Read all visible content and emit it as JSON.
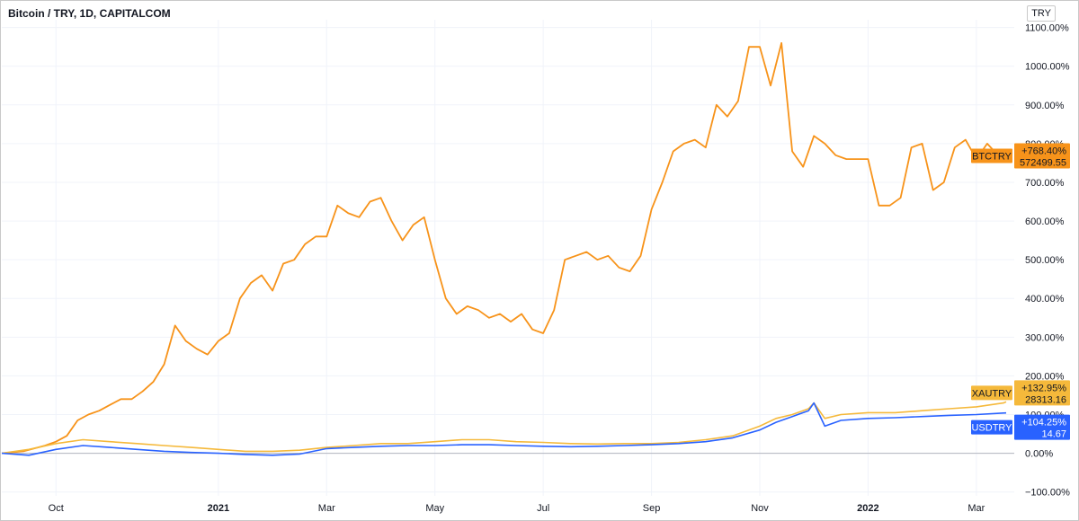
{
  "title": "Bitcoin / TRY, 1D, CAPITALCOM",
  "currency_button": "TRY",
  "colors": {
    "btctry": "#f7931a",
    "xautry": "#f5b93b",
    "usdtry": "#2962ff",
    "grid": "#f0f3fa",
    "zero_line": "#b2b5be"
  },
  "chart_data": {
    "type": "line",
    "ylabel": "",
    "y_unit": "%",
    "ylim": [
      -110,
      1120
    ],
    "y_ticks": [
      "1100.00%",
      "1000.00%",
      "900.00%",
      "800.00%",
      "700.00%",
      "600.00%",
      "500.00%",
      "400.00%",
      "300.00%",
      "200.00%",
      "100.00%",
      "0.00%",
      "−100.00%"
    ],
    "x_ticks": [
      {
        "label": "Oct",
        "bold": false
      },
      {
        "label": "2021",
        "bold": true
      },
      {
        "label": "Mar",
        "bold": false
      },
      {
        "label": "May",
        "bold": false
      },
      {
        "label": "Jul",
        "bold": false
      },
      {
        "label": "Sep",
        "bold": false
      },
      {
        "label": "Nov",
        "bold": false
      },
      {
        "label": "2022",
        "bold": true
      },
      {
        "label": "Mar",
        "bold": false
      }
    ],
    "x_tick_months": [
      1,
      4,
      6,
      8,
      10,
      12,
      14,
      16,
      18
    ],
    "grid": true,
    "series": [
      {
        "name": "BTCTRY",
        "change": "+768.40%",
        "last_value": "572499.55",
        "end_y": 768.4,
        "x": [
          0,
          0.4,
          0.8,
          1.0,
          1.2,
          1.4,
          1.6,
          1.8,
          2.0,
          2.2,
          2.4,
          2.6,
          2.8,
          3.0,
          3.2,
          3.4,
          3.6,
          3.8,
          4.0,
          4.2,
          4.4,
          4.6,
          4.8,
          5.0,
          5.2,
          5.4,
          5.6,
          5.8,
          6.0,
          6.2,
          6.4,
          6.6,
          6.8,
          7.0,
          7.2,
          7.4,
          7.6,
          7.8,
          8.0,
          8.2,
          8.4,
          8.6,
          8.8,
          9.0,
          9.2,
          9.4,
          9.6,
          9.8,
          10.0,
          10.2,
          10.4,
          10.6,
          10.8,
          11.0,
          11.2,
          11.4,
          11.6,
          11.8,
          12.0,
          12.2,
          12.4,
          12.6,
          12.8,
          13.0,
          13.2,
          13.4,
          13.6,
          13.8,
          14.0,
          14.2,
          14.4,
          14.6,
          14.8,
          15.0,
          15.2,
          15.4,
          15.6,
          15.8,
          16.0,
          16.2,
          16.4,
          16.6,
          16.8,
          17.0,
          17.2,
          17.4,
          17.6,
          17.8,
          18.0,
          18.2,
          18.4,
          18.55
        ],
        "y": [
          0,
          5,
          20,
          30,
          45,
          85,
          100,
          110,
          125,
          140,
          140,
          160,
          185,
          230,
          330,
          290,
          270,
          255,
          290,
          310,
          400,
          440,
          460,
          420,
          490,
          500,
          540,
          560,
          560,
          640,
          620,
          610,
          650,
          660,
          600,
          550,
          590,
          610,
          500,
          400,
          360,
          380,
          370,
          350,
          360,
          340,
          360,
          320,
          310,
          370,
          500,
          510,
          520,
          500,
          510,
          480,
          470,
          510,
          630,
          700,
          780,
          800,
          810,
          790,
          900,
          870,
          910,
          1050,
          1050,
          950,
          1060,
          780,
          740,
          820,
          800,
          770,
          760,
          760,
          760,
          640,
          640,
          660,
          790,
          800,
          680,
          700,
          790,
          810,
          760,
          800,
          770,
          768.4
        ]
      },
      {
        "name": "XAUTRY",
        "change": "+132.95%",
        "last_value": "28313.16",
        "end_y": 132.95,
        "x": [
          0,
          0.5,
          1.0,
          1.5,
          2.0,
          2.5,
          3.0,
          3.5,
          4.0,
          4.5,
          5.0,
          5.5,
          6.0,
          6.5,
          7.0,
          7.5,
          8.0,
          8.5,
          9.0,
          9.5,
          10.0,
          10.5,
          11.0,
          11.5,
          12.0,
          12.5,
          13.0,
          13.5,
          14.0,
          14.3,
          14.6,
          14.9,
          15.0,
          15.2,
          15.5,
          16.0,
          16.5,
          17.0,
          17.5,
          18.0,
          18.5,
          18.55
        ],
        "y": [
          0,
          10,
          25,
          35,
          30,
          25,
          20,
          15,
          10,
          5,
          5,
          8,
          15,
          20,
          25,
          25,
          30,
          35,
          35,
          30,
          28,
          25,
          24,
          25,
          25,
          28,
          35,
          45,
          70,
          90,
          100,
          115,
          130,
          90,
          100,
          105,
          105,
          110,
          115,
          120,
          130,
          132.95
        ]
      },
      {
        "name": "USDTRY",
        "change": "+104.25%",
        "last_value": "14.67",
        "end_y": 104.25,
        "x": [
          0,
          0.5,
          1.0,
          1.5,
          2.0,
          2.5,
          3.0,
          3.5,
          4.0,
          4.5,
          5.0,
          5.5,
          6.0,
          6.5,
          7.0,
          7.5,
          8.0,
          8.5,
          9.0,
          9.5,
          10.0,
          10.5,
          11.0,
          11.5,
          12.0,
          12.5,
          13.0,
          13.5,
          14.0,
          14.3,
          14.6,
          14.9,
          15.0,
          15.2,
          15.5,
          16.0,
          16.5,
          17.0,
          17.5,
          18.0,
          18.5,
          18.55
        ],
        "y": [
          0,
          -5,
          10,
          20,
          15,
          10,
          5,
          2,
          0,
          -3,
          -5,
          -2,
          12,
          15,
          18,
          20,
          20,
          22,
          22,
          20,
          18,
          17,
          18,
          20,
          22,
          25,
          30,
          40,
          60,
          80,
          95,
          110,
          130,
          70,
          85,
          90,
          92,
          95,
          98,
          100,
          104,
          104.25
        ]
      }
    ]
  }
}
